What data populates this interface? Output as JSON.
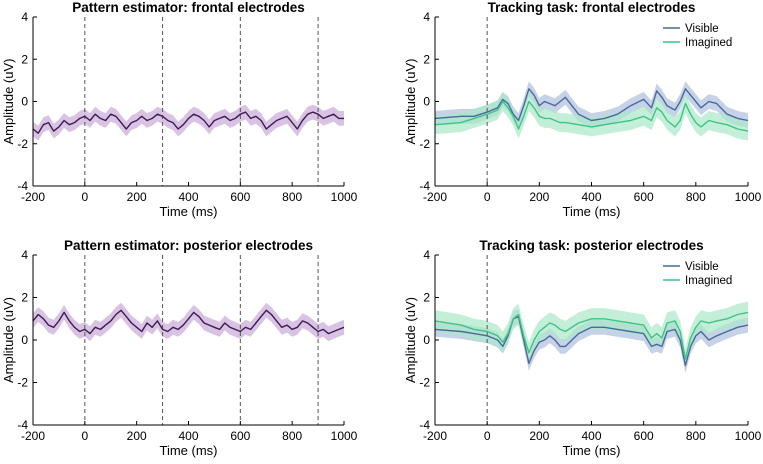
{
  "colors": {
    "pattern_line": "#3d1c4f",
    "pattern_band": "#c9a9d9",
    "visible_line": "#4a6a9a",
    "visible_band": "#aebfde",
    "imagined_line": "#3fc487",
    "imagined_band": "#a9e8c8",
    "vline": "#555555"
  },
  "chart_data": [
    {
      "type": "line",
      "title": "Pattern estimator: frontal electrodes",
      "xlabel": "Time (ms)",
      "ylabel": "Amplitude (uV)",
      "xlim": [
        -200,
        1000
      ],
      "ylim": [
        -4,
        4
      ],
      "xticks": [
        "-200",
        "0",
        "200",
        "400",
        "600",
        "800",
        "1000"
      ],
      "yticks": [
        "-4",
        "-2",
        "0",
        "2",
        "4"
      ],
      "vlines": [
        0,
        300,
        600,
        900
      ],
      "legend": null,
      "series": [
        {
          "name": "Pattern estimator",
          "color_key": "pattern",
          "x": [
            -200,
            -180,
            -160,
            -140,
            -120,
            -100,
            -80,
            -60,
            -40,
            -20,
            0,
            20,
            40,
            60,
            80,
            100,
            120,
            140,
            160,
            180,
            200,
            220,
            240,
            260,
            280,
            300,
            320,
            340,
            360,
            380,
            400,
            420,
            440,
            460,
            480,
            500,
            520,
            540,
            560,
            580,
            600,
            620,
            640,
            660,
            680,
            700,
            720,
            740,
            760,
            780,
            800,
            820,
            840,
            860,
            880,
            900,
            920,
            940,
            960,
            980,
            1000
          ],
          "y": [
            -1.3,
            -1.5,
            -1.1,
            -1.0,
            -1.4,
            -1.2,
            -0.9,
            -1.1,
            -1.0,
            -0.8,
            -0.7,
            -0.9,
            -0.6,
            -0.8,
            -0.9,
            -0.6,
            -0.7,
            -1.0,
            -1.3,
            -1.0,
            -0.9,
            -0.7,
            -0.9,
            -0.8,
            -0.6,
            -0.7,
            -0.9,
            -1.0,
            -1.3,
            -1.1,
            -0.8,
            -0.6,
            -0.7,
            -0.9,
            -1.2,
            -0.9,
            -0.8,
            -0.7,
            -0.9,
            -0.8,
            -0.6,
            -0.5,
            -0.8,
            -0.7,
            -0.9,
            -1.3,
            -1.1,
            -0.9,
            -0.8,
            -0.7,
            -1.0,
            -1.3,
            -0.9,
            -0.6,
            -0.5,
            -0.6,
            -0.8,
            -0.7,
            -0.6,
            -0.8,
            -0.8
          ],
          "band": 0.35
        }
      ]
    },
    {
      "type": "line",
      "title": "Tracking task: frontal electrodes",
      "xlabel": "Time (ms)",
      "ylabel": "Amplitude (uV)",
      "xlim": [
        -200,
        1000
      ],
      "ylim": [
        -4,
        4
      ],
      "xticks": [
        "-200",
        "0",
        "200",
        "400",
        "600",
        "800",
        "1000"
      ],
      "yticks": [
        "-4",
        "-2",
        "0",
        "2",
        "4"
      ],
      "vlines": [
        0
      ],
      "legend": [
        "Visible",
        "Imagined"
      ],
      "series": [
        {
          "name": "Visible",
          "color_key": "visible",
          "x": [
            -200,
            -100,
            -50,
            0,
            20,
            40,
            60,
            80,
            100,
            120,
            140,
            160,
            180,
            200,
            220,
            240,
            260,
            280,
            300,
            350,
            400,
            450,
            500,
            550,
            600,
            630,
            650,
            670,
            690,
            720,
            740,
            760,
            780,
            800,
            820,
            850,
            880,
            920,
            960,
            1000
          ],
          "y": [
            -0.8,
            -0.7,
            -0.7,
            -0.5,
            -0.4,
            -0.3,
            0.1,
            -0.1,
            -0.6,
            -0.9,
            -0.2,
            0.6,
            0.3,
            -0.2,
            0.0,
            -0.1,
            -0.2,
            0.0,
            0.2,
            -0.6,
            -0.9,
            -0.8,
            -0.6,
            -0.2,
            0.1,
            -0.3,
            0.5,
            0.2,
            -0.2,
            -0.4,
            0.0,
            0.6,
            0.3,
            0.0,
            -0.3,
            0.0,
            -0.1,
            -0.6,
            -0.8,
            -0.9
          ],
          "band": 0.35
        },
        {
          "name": "Imagined",
          "color_key": "imagined",
          "x": [
            -200,
            -100,
            -50,
            0,
            20,
            40,
            60,
            80,
            100,
            120,
            140,
            160,
            180,
            200,
            220,
            240,
            260,
            280,
            300,
            350,
            400,
            450,
            500,
            550,
            600,
            630,
            650,
            670,
            690,
            720,
            740,
            760,
            780,
            800,
            820,
            850,
            880,
            920,
            960,
            1000
          ],
          "y": [
            -1.1,
            -1.0,
            -0.8,
            -0.6,
            -0.5,
            -0.4,
            0.0,
            -0.3,
            -0.7,
            -1.3,
            -0.7,
            0.0,
            -0.3,
            -0.7,
            -0.8,
            -0.8,
            -0.9,
            -1.0,
            -1.0,
            -1.1,
            -1.2,
            -1.1,
            -1.0,
            -0.9,
            -0.7,
            -0.9,
            -0.3,
            -0.5,
            -0.9,
            -1.2,
            -0.9,
            -0.1,
            -0.6,
            -1.0,
            -1.2,
            -0.9,
            -1.0,
            -1.1,
            -1.3,
            -1.4
          ],
          "band": 0.45
        }
      ]
    },
    {
      "type": "line",
      "title": "Pattern estimator: posterior electrodes",
      "xlabel": "Time (ms)",
      "ylabel": "Amplitude (uV)",
      "xlim": [
        -200,
        1000
      ],
      "ylim": [
        -4,
        4
      ],
      "xticks": [
        "-200",
        "0",
        "200",
        "400",
        "600",
        "800",
        "1000"
      ],
      "yticks": [
        "-4",
        "-2",
        "0",
        "2",
        "4"
      ],
      "vlines": [
        0,
        300,
        600,
        900
      ],
      "legend": null,
      "series": [
        {
          "name": "Pattern estimator",
          "color_key": "pattern",
          "x": [
            -200,
            -180,
            -160,
            -140,
            -120,
            -100,
            -80,
            -60,
            -40,
            -20,
            0,
            20,
            40,
            60,
            80,
            100,
            120,
            140,
            160,
            180,
            200,
            220,
            240,
            260,
            280,
            300,
            320,
            340,
            360,
            380,
            400,
            420,
            440,
            460,
            480,
            500,
            520,
            540,
            560,
            580,
            600,
            620,
            640,
            660,
            680,
            700,
            720,
            740,
            760,
            780,
            800,
            820,
            840,
            860,
            880,
            900,
            920,
            940,
            960,
            980,
            1000
          ],
          "y": [
            0.9,
            1.2,
            1.0,
            0.7,
            0.6,
            0.9,
            1.3,
            0.9,
            0.6,
            0.4,
            0.5,
            0.3,
            0.6,
            0.5,
            0.7,
            0.9,
            1.2,
            1.4,
            1.1,
            0.8,
            0.6,
            0.4,
            0.8,
            0.6,
            0.9,
            0.5,
            0.4,
            0.6,
            0.5,
            0.7,
            1.0,
            1.3,
            1.1,
            0.8,
            0.7,
            0.6,
            0.5,
            0.8,
            0.6,
            0.5,
            0.4,
            0.6,
            0.5,
            0.8,
            1.1,
            1.4,
            1.2,
            0.9,
            0.6,
            0.7,
            0.5,
            0.6,
            0.9,
            0.8,
            0.6,
            0.4,
            0.5,
            0.3,
            0.4,
            0.5,
            0.6
          ],
          "band": 0.35
        }
      ]
    },
    {
      "type": "line",
      "title": "Tracking task: posterior electrodes",
      "xlabel": "Time (ms)",
      "ylabel": "Amplitude (uV)",
      "xlim": [
        -200,
        1000
      ],
      "ylim": [
        -4,
        4
      ],
      "xticks": [
        "-200",
        "0",
        "200",
        "400",
        "600",
        "800",
        "1000"
      ],
      "yticks": [
        "-4",
        "-2",
        "0",
        "2",
        "4"
      ],
      "vlines": [
        0
      ],
      "legend": [
        "Visible",
        "Imagined"
      ],
      "series": [
        {
          "name": "Visible",
          "color_key": "visible",
          "x": [
            -200,
            -100,
            -50,
            0,
            20,
            40,
            60,
            80,
            100,
            120,
            140,
            160,
            180,
            200,
            220,
            240,
            260,
            280,
            300,
            350,
            400,
            450,
            500,
            550,
            600,
            630,
            650,
            670,
            690,
            720,
            740,
            760,
            780,
            800,
            820,
            850,
            880,
            920,
            960,
            1000
          ],
          "y": [
            0.5,
            0.4,
            0.3,
            0.2,
            0.1,
            0.0,
            -0.3,
            0.2,
            1.0,
            1.1,
            0.0,
            -1.1,
            -0.5,
            -0.1,
            0.0,
            0.2,
            0.0,
            -0.3,
            -0.3,
            0.3,
            0.6,
            0.6,
            0.5,
            0.4,
            0.3,
            -0.3,
            -0.2,
            -0.3,
            0.4,
            0.5,
            0.0,
            -1.2,
            -0.3,
            0.2,
            0.4,
            0.0,
            0.2,
            0.4,
            0.6,
            0.7
          ],
          "band": 0.35
        },
        {
          "name": "Imagined",
          "color_key": "imagined",
          "x": [
            -200,
            -100,
            -50,
            0,
            20,
            40,
            60,
            80,
            100,
            120,
            140,
            160,
            180,
            200,
            220,
            240,
            260,
            280,
            300,
            350,
            400,
            450,
            500,
            550,
            600,
            630,
            650,
            670,
            690,
            720,
            740,
            760,
            780,
            800,
            820,
            850,
            880,
            920,
            960,
            1000
          ],
          "y": [
            0.9,
            0.7,
            0.5,
            0.4,
            0.3,
            0.2,
            -0.1,
            0.3,
            1.0,
            1.2,
            0.2,
            -0.6,
            0.0,
            0.4,
            0.6,
            0.8,
            0.7,
            0.5,
            0.4,
            0.8,
            1.0,
            1.0,
            0.9,
            0.8,
            0.7,
            0.1,
            0.3,
            0.1,
            0.8,
            0.9,
            0.4,
            -0.9,
            0.1,
            0.6,
            0.9,
            0.8,
            0.9,
            1.0,
            1.2,
            1.3
          ],
          "band": 0.5
        }
      ]
    }
  ]
}
